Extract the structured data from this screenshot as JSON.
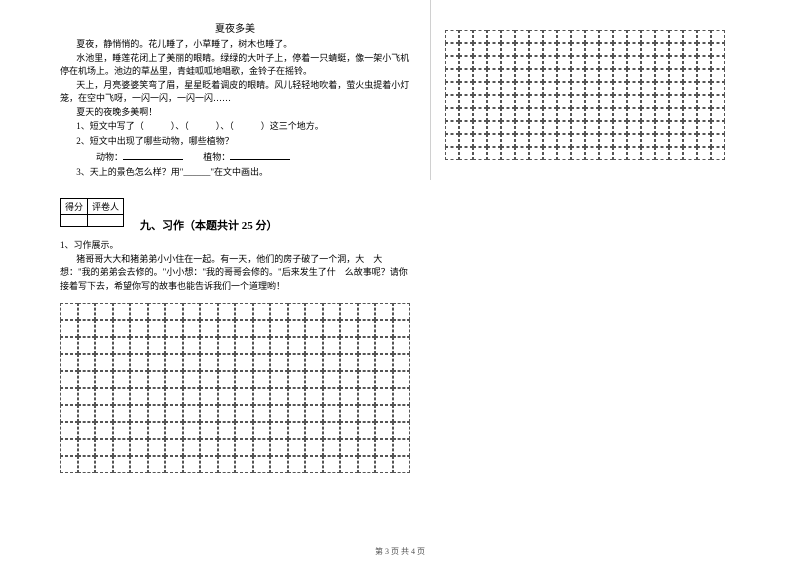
{
  "reading": {
    "title": "夏夜多美",
    "p1": "夏夜，静悄悄的。花儿睡了，小草睡了，树木也睡了。",
    "p2": "水池里，睡莲花闭上了美丽的眼睛。绿绿的大叶子上，停着一只蜻蜓，像一架小飞机停在机场上。池边的草丛里，青蛙呱呱地唱歌，金铃子在摇铃。",
    "p3": "天上，月亮婆婆笑弯了眉，星星眨着调皮的眼睛。风儿轻轻地吹着，萤火虫提着小灯笼，在空中飞呀，一闪一闪，一闪一闪……",
    "p4": "夏天的夜晚多美啊！",
    "q1": "1、短文中写了（　　　）、（　　　）、（　　　）这三个地方。",
    "q2": "2、短文中出现了哪些动物，哪些植物？",
    "q2a_label": "动物：",
    "q2b_label": "植物：",
    "q3": "3、天上的景色怎么样？用\"______\"在文中画出。"
  },
  "score": {
    "label1": "得分",
    "label2": "评卷人"
  },
  "section9": {
    "heading": "九、习作（本题共计 25 分）",
    "item": "1、习作展示。",
    "body": "猪哥哥大大和猪弟弟小小住在一起。有一天，他们的房子破了一个洞，大　大想：\"我的弟弟会去修的。\"小小想：\"我的哥哥会修的。\"后来发生了什　么故事呢？请你接着写下去，希望你写的故事也能告诉我们一个道理哟！"
  },
  "gridLeft": {
    "rows": 10,
    "cols": 20
  },
  "gridRight": {
    "rows": 10,
    "cols": 20
  },
  "footer": "第 3 页 共 4 页",
  "colors": {
    "text": "#000000",
    "bg": "#ffffff",
    "grid": "#555555"
  }
}
